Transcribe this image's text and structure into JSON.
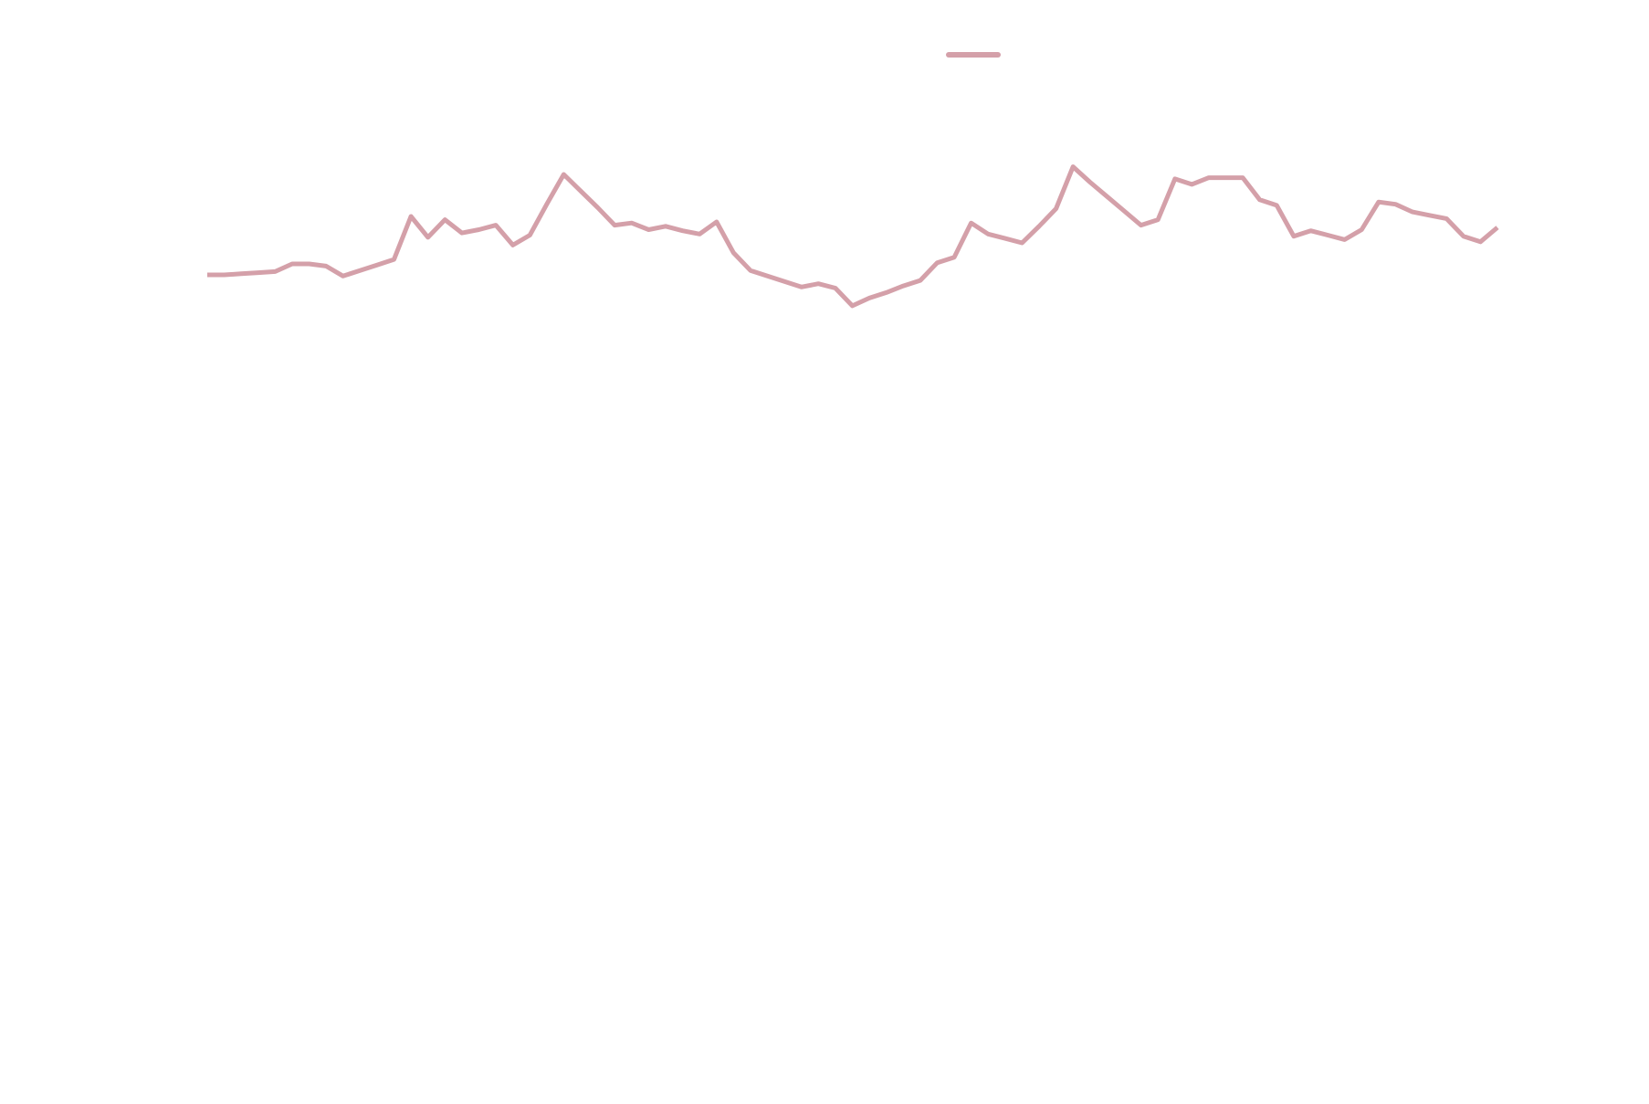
{
  "chart_data": {
    "type": "line",
    "title": "",
    "xlabel": "",
    "ylabel": "",
    "grid": false,
    "legend_position": "top",
    "ylim": [
      0,
      100
    ],
    "series": [
      {
        "color": "#d4a0a9",
        "values": [
          75.1,
          75.1,
          75.2,
          75.3,
          75.4,
          76.1,
          76.1,
          75.9,
          75.0,
          75.5,
          76.0,
          76.5,
          80.4,
          78.5,
          80.1,
          78.9,
          79.2,
          79.6,
          77.8,
          78.7,
          81.5,
          84.2,
          82.7,
          81.2,
          79.6,
          79.8,
          79.2,
          79.5,
          79.1,
          78.8,
          79.9,
          77.1,
          75.5,
          75.0,
          74.5,
          74.0,
          74.3,
          73.9,
          72.3,
          73.0,
          73.5,
          74.1,
          74.6,
          76.2,
          76.7,
          79.8,
          78.8,
          78.4,
          78.0,
          79.5,
          81.1,
          84.9,
          83.5,
          82.2,
          80.9,
          79.6,
          80.1,
          83.8,
          83.3,
          83.9,
          83.9,
          83.9,
          81.9,
          81.4,
          78.6,
          79.1,
          78.7,
          78.3,
          79.2,
          81.7,
          81.5,
          80.8,
          80.5,
          80.2,
          78.6,
          78.1,
          79.4
        ]
      }
    ]
  }
}
